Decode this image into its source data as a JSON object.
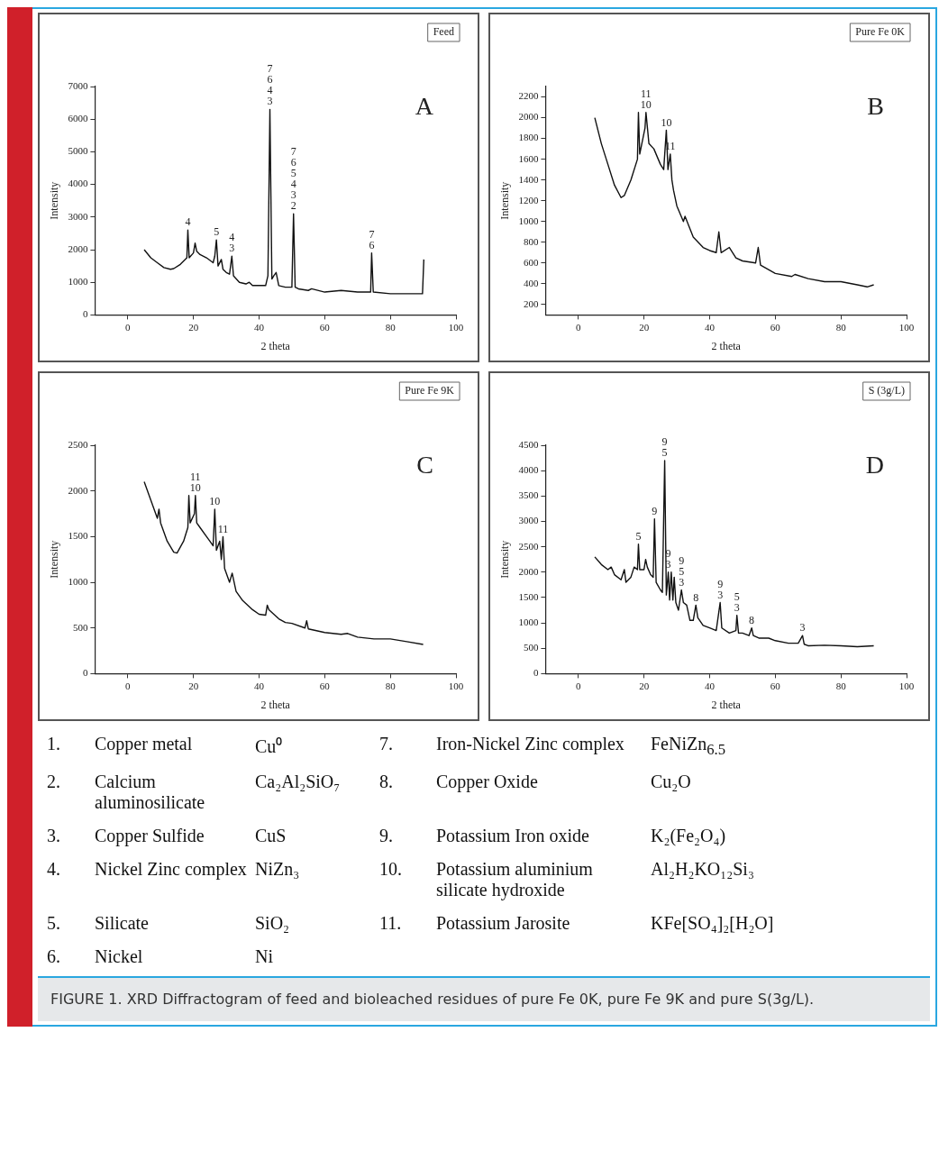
{
  "chart_data": [
    {
      "type": "line",
      "xlabel": "2 theta",
      "ylabel": "Intensity",
      "xlim": [
        -10,
        100
      ],
      "xticks": [
        0,
        20,
        40,
        60,
        80,
        100
      ],
      "ylim": [
        0,
        7000
      ],
      "yticks": [
        0,
        1000,
        2000,
        3000,
        4000,
        5000,
        6000,
        7000
      ],
      "grid": false,
      "legend": false,
      "color": "#111111",
      "x": [
        5,
        7,
        9,
        11,
        13,
        14,
        16,
        18,
        18.3,
        18.7,
        20,
        20.5,
        21,
        22,
        24,
        26,
        26.5,
        27,
        27.5,
        28.5,
        29,
        30,
        31,
        31.7,
        32.2,
        34,
        36,
        37,
        38,
        40,
        42,
        42.7,
        43.3,
        43.9,
        44.5,
        45.2,
        46,
        48,
        50,
        50.5,
        51,
        52,
        55,
        56,
        60,
        65,
        70,
        74,
        74.3,
        74.8,
        80,
        85,
        89.8,
        90.2
      ],
      "values": [
        2000,
        1750,
        1600,
        1450,
        1400,
        1420,
        1550,
        1750,
        2600,
        1750,
        1900,
        2200,
        1950,
        1850,
        1750,
        1600,
        1800,
        2300,
        1500,
        1700,
        1400,
        1300,
        1250,
        1800,
        1200,
        1000,
        950,
        1000,
        900,
        900,
        900,
        1200,
        6300,
        1100,
        1200,
        1300,
        900,
        850,
        850,
        3100,
        850,
        800,
        750,
        800,
        700,
        750,
        700,
        700,
        1900,
        700,
        650,
        650,
        650,
        1700
      ],
      "annotations": [
        "Feed",
        "A",
        {
          "text": "4",
          "x": 18.3,
          "y": 2600
        },
        {
          "text": "5",
          "x": 27,
          "y": 2300
        },
        {
          "text": "4\n3",
          "x": 31.7,
          "y": 1800
        },
        {
          "text": "7\n6\n4\n3",
          "x": 43.3,
          "y": 6300
        },
        {
          "text": "7\n6\n5\n4\n3\n2",
          "x": 50.5,
          "y": 3100
        },
        {
          "text": "7\n6",
          "x": 74.3,
          "y": 1900
        }
      ]
    },
    {
      "type": "line",
      "xlabel": "2 theta",
      "ylabel": "Intensity",
      "xlim": [
        -10,
        100
      ],
      "xticks": [
        0,
        20,
        40,
        60,
        80,
        100
      ],
      "ylim": [
        100,
        2300
      ],
      "yticks": [
        200,
        400,
        600,
        800,
        1000,
        1200,
        1400,
        1600,
        1800,
        2000,
        2200
      ],
      "grid": false,
      "legend": false,
      "color": "#111111",
      "x": [
        5,
        7,
        9,
        11,
        13,
        14,
        16,
        18,
        18.3,
        18.7,
        20.3,
        20.6,
        21.5,
        23,
        25,
        26,
        26.8,
        27.3,
        28,
        28.5,
        29,
        30,
        32,
        32.5,
        35,
        38,
        40,
        42,
        42.8,
        43.5,
        46,
        48,
        50,
        54,
        54.8,
        55.5,
        60,
        65,
        66,
        70,
        75,
        80,
        85,
        88,
        90
      ],
      "values": [
        2000,
        1750,
        1550,
        1350,
        1230,
        1250,
        1400,
        1600,
        2050,
        1650,
        1900,
        2050,
        1750,
        1700,
        1550,
        1500,
        1880,
        1500,
        1650,
        1400,
        1300,
        1150,
        1000,
        1050,
        850,
        750,
        720,
        700,
        900,
        700,
        750,
        650,
        620,
        600,
        750,
        580,
        500,
        470,
        490,
        450,
        420,
        420,
        390,
        370,
        390
      ],
      "annotations": [
        "Pure Fe 0K",
        "B",
        {
          "text": "11\n10",
          "x": 20.6,
          "y": 2050
        },
        {
          "text": "10",
          "x": 26.8,
          "y": 1880
        },
        {
          "text": "11",
          "x": 28,
          "y": 1650
        }
      ]
    },
    {
      "type": "line",
      "xlabel": "2 theta",
      "ylabel": "Intensity",
      "xlim": [
        -10,
        100
      ],
      "xticks": [
        0,
        20,
        40,
        60,
        80,
        100
      ],
      "ylim": [
        0,
        2500
      ],
      "yticks": [
        0,
        500,
        1000,
        1500,
        2000,
        2500
      ],
      "grid": false,
      "legend": false,
      "color": "#111111",
      "x": [
        5,
        7,
        9,
        9.5,
        10,
        12,
        14,
        15,
        17,
        18.3,
        18.6,
        19,
        20.3,
        20.6,
        21,
        22,
        24,
        25,
        26,
        26.5,
        27,
        28,
        28.5,
        29,
        29.5,
        31,
        31.8,
        33,
        35,
        38,
        40,
        42,
        42.5,
        43,
        46,
        48,
        50,
        54,
        54.5,
        55,
        60,
        65,
        67,
        70,
        75,
        80,
        85,
        90
      ],
      "values": [
        2100,
        1900,
        1700,
        1800,
        1650,
        1450,
        1330,
        1320,
        1450,
        1600,
        1950,
        1650,
        1750,
        1950,
        1650,
        1600,
        1500,
        1450,
        1400,
        1800,
        1350,
        1450,
        1250,
        1500,
        1150,
        1000,
        1100,
        900,
        800,
        700,
        650,
        640,
        750,
        700,
        600,
        560,
        550,
        500,
        580,
        490,
        450,
        430,
        440,
        400,
        380,
        380,
        350,
        320
      ],
      "annotations": [
        "Pure Fe 9K",
        "C",
        {
          "text": "11\n10",
          "x": 20.6,
          "y": 1950
        },
        {
          "text": "10",
          "x": 26.5,
          "y": 1800
        },
        {
          "text": "11",
          "x": 29,
          "y": 1500
        }
      ]
    },
    {
      "type": "line",
      "xlabel": "2 theta",
      "ylabel": "Intensity",
      "xlim": [
        -10,
        100
      ],
      "xticks": [
        0,
        20,
        40,
        60,
        80,
        100
      ],
      "ylim": [
        0,
        4500
      ],
      "yticks": [
        0,
        500,
        1000,
        1500,
        2000,
        2500,
        3000,
        3500,
        4000,
        4500
      ],
      "grid": false,
      "legend": false,
      "color": "#111111",
      "x": [
        5,
        7,
        9,
        10,
        11,
        13,
        14,
        14.5,
        16,
        17,
        18,
        18.3,
        18.7,
        20,
        20.5,
        21,
        22,
        22.8,
        23.2,
        23.7,
        25,
        25.6,
        26.3,
        26.8,
        27.4,
        27.8,
        28.3,
        28.8,
        29.2,
        29.7,
        30.5,
        31.4,
        32,
        33,
        34,
        35,
        35.8,
        36.4,
        38,
        40,
        42,
        43.2,
        43.7,
        46,
        48,
        48.3,
        48.8,
        50,
        52,
        52.8,
        53.3,
        55,
        58,
        60,
        64,
        67,
        68.3,
        68.8,
        70,
        75,
        80,
        85,
        90
      ],
      "values": [
        2300,
        2150,
        2050,
        2100,
        1950,
        1850,
        2050,
        1800,
        1900,
        2100,
        2050,
        2550,
        2050,
        2050,
        2250,
        2100,
        1950,
        1900,
        3050,
        1800,
        1650,
        1600,
        4200,
        1550,
        2000,
        1450,
        2000,
        1450,
        1900,
        1400,
        1250,
        1650,
        1400,
        1350,
        1050,
        1050,
        1350,
        1100,
        950,
        900,
        850,
        1400,
        900,
        800,
        850,
        1150,
        800,
        800,
        750,
        900,
        750,
        700,
        700,
        650,
        600,
        600,
        750,
        580,
        550,
        560,
        550,
        530,
        550
      ],
      "annotations": [
        "S (3g/L)",
        "D",
        {
          "text": "5",
          "x": 18.3,
          "y": 2550
        },
        {
          "text": "9",
          "x": 23.2,
          "y": 3050
        },
        {
          "text": "9\n5",
          "x": 26.3,
          "y": 4200
        },
        {
          "text": "9\n3",
          "x": 27.4,
          "y": 2000
        },
        {
          "text": "9\n5\n3",
          "x": 31.4,
          "y": 1650
        },
        {
          "text": "8",
          "x": 35.8,
          "y": 1350
        },
        {
          "text": "9\n3",
          "x": 43.2,
          "y": 1400
        },
        {
          "text": "5\n3",
          "x": 48.3,
          "y": 1150
        },
        {
          "text": "8",
          "x": 52.8,
          "y": 900
        },
        {
          "text": "3",
          "x": 68.3,
          "y": 750
        }
      ]
    },
    {
      "type": "other",
      "annotations": [
        "1.",
        "Copper metal",
        "Cu⁰",
        "7.",
        "Iron-Nickel Zinc complex",
        "FeNiZn$_{6.5}$",
        "2.",
        "Calcium aluminosilicate",
        "Ca₂Al₂SiO₇",
        "8.",
        "Copper Oxide",
        "Cu₂O",
        "3.",
        "Copper Sulfide",
        "CuS",
        "9.",
        "Potassium Iron oxide",
        "K₂(Fe₂O₄)",
        "4.",
        "Nickel Zinc complex",
        "NiZn₃",
        "10.",
        "Potassium aluminium silicate hydroxide",
        "Al₂H₂KO₁₂Si₃",
        "5.",
        "Silicate",
        "SiO₂",
        "11.",
        "Potassium Jarosite",
        "KFe[SO₄]₂[H₂O]",
        "6.",
        "Nickel",
        "Ni"
      ]
    },
    {
      "type": "other",
      "annotations": [
        "FIGURE 1. XRD Diffractogram of feed and bioleached residues of pure Fe 0K, pure Fe 9K and pure S(3g/L)."
      ]
    }
  ]
}
